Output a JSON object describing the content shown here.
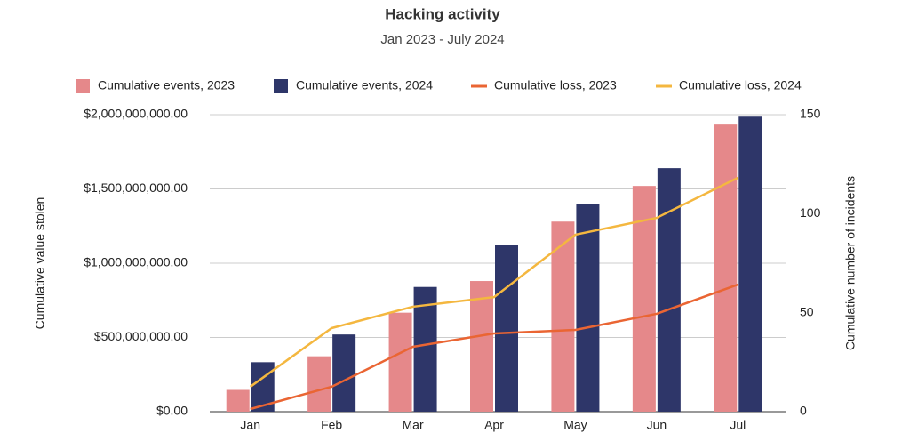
{
  "chart_data": {
    "type": "combo",
    "title": "Hacking activity",
    "subtitle": "Jan 2023 - July 2024",
    "y_label": "Cumulative value stolen",
    "y2_label": "Cumulative number of incidents",
    "categories": [
      "Jan",
      "Feb",
      "Mar",
      "Apr",
      "May",
      "Jun",
      "Jul"
    ],
    "series": [
      {
        "name": "Cumulative events, 2023",
        "type": "bar",
        "axis": "y2",
        "color": "#e5888a",
        "values": [
          11,
          28,
          50,
          66,
          96,
          114,
          145
        ]
      },
      {
        "name": "Cumulative events, 2024",
        "type": "bar",
        "axis": "y2",
        "color": "#2e3669",
        "values": [
          25,
          39,
          63,
          84,
          105,
          123,
          149
        ]
      },
      {
        "name": "Cumulative loss, 2023",
        "type": "line",
        "axis": "y",
        "color": "#ea6533",
        "values": [
          18000000,
          168000000,
          437000000,
          527000000,
          551000000,
          659000000,
          856000000
        ]
      },
      {
        "name": "Cumulative loss, 2024",
        "type": "line",
        "axis": "y",
        "color": "#f4b73f",
        "values": [
          168000000,
          563000000,
          707000000,
          772000000,
          1192000000,
          1305000000,
          1575000000
        ]
      }
    ],
    "ylim": [
      0,
      2000000000
    ],
    "yticks": [
      {
        "value": 0,
        "label": "$0.00"
      },
      {
        "value": 500000000,
        "label": "$500,000,000.00"
      },
      {
        "value": 1000000000,
        "label": "$1,000,000,000.00"
      },
      {
        "value": 1500000000,
        "label": "$1,500,000,000.00"
      },
      {
        "value": 2000000000,
        "label": "$2,000,000,000.00"
      }
    ],
    "y2lim": [
      0,
      150
    ],
    "y2ticks": [
      0,
      50,
      100,
      150
    ],
    "grid": true,
    "legend": "top"
  }
}
